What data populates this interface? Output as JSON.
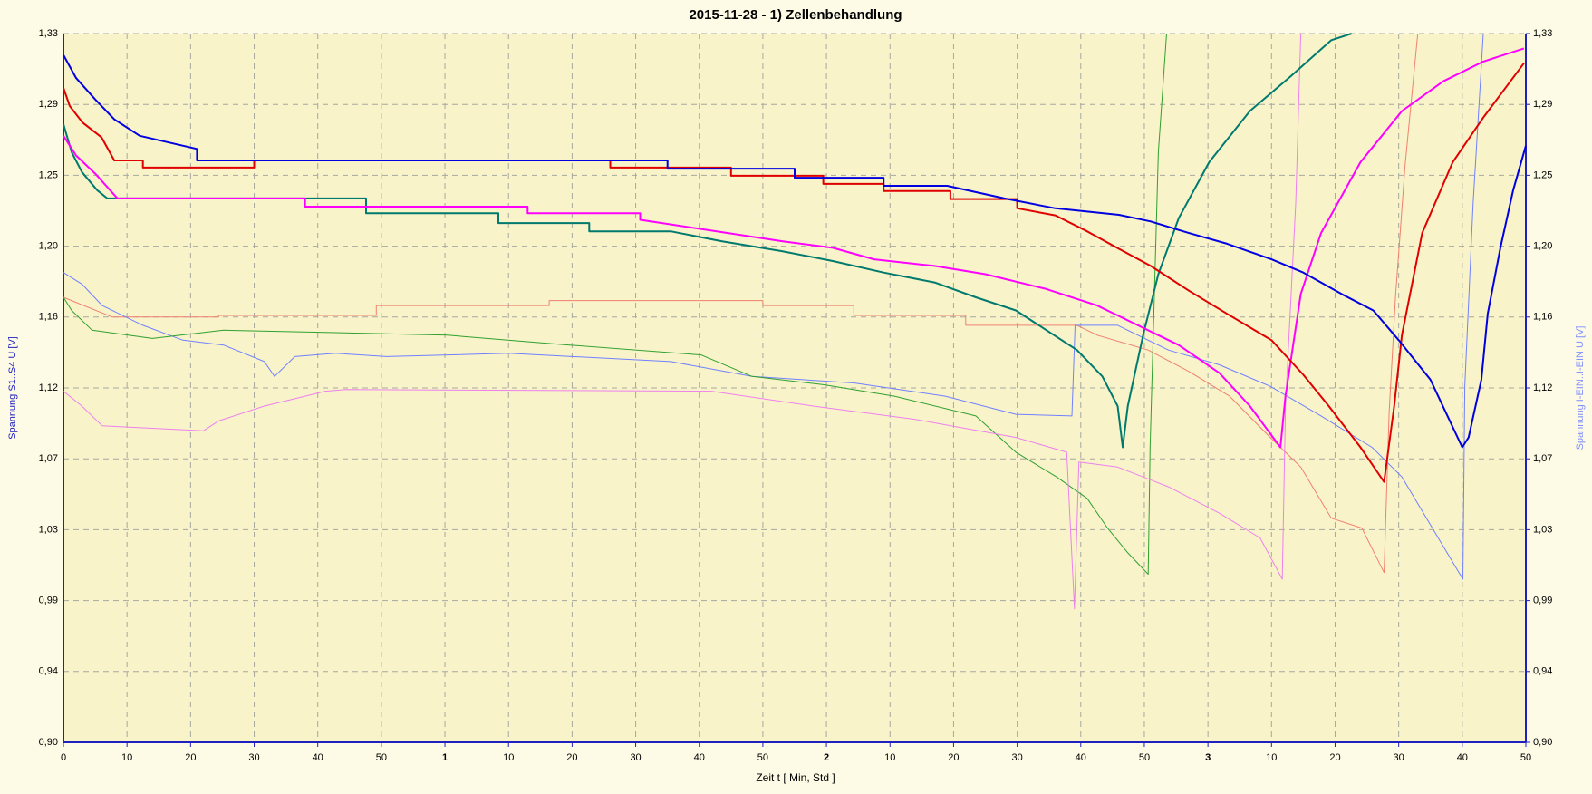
{
  "chart_data": {
    "type": "line",
    "title": "2015-11-28  -  1) Zellenbehandlung",
    "xlabel": "Zeit  t  [ Min, Std ]",
    "ylabel": "Spannung S1..S4  U  [V]",
    "y2label": "Spannung I-EIN..I-EIN  U  [V]",
    "grid": true,
    "xlim": [
      0,
      230
    ],
    "ylim": [
      0.9,
      1.33
    ],
    "y2lim": [
      0.9,
      1.33
    ],
    "xticks": [
      0,
      10,
      20,
      30,
      40,
      50,
      {
        "value": 60,
        "label": "1"
      },
      {
        "value": 70,
        "label": "10"
      },
      {
        "value": 80,
        "label": "20"
      },
      {
        "value": 90,
        "label": "30"
      },
      {
        "value": 100,
        "label": "40"
      },
      {
        "value": 110,
        "label": "50"
      },
      {
        "value": 120,
        "label": "2"
      },
      {
        "value": 130,
        "label": "10"
      },
      {
        "value": 140,
        "label": "20"
      },
      {
        "value": 150,
        "label": "30"
      },
      {
        "value": 160,
        "label": "40"
      },
      {
        "value": 170,
        "label": "50"
      },
      {
        "value": 180,
        "label": "3"
      },
      {
        "value": 190,
        "label": "10"
      },
      {
        "value": 200,
        "label": "20"
      },
      {
        "value": 210,
        "label": "30"
      },
      {
        "value": 220,
        "label": "40"
      },
      {
        "value": 230,
        "label": "50"
      }
    ],
    "yticks": [
      {
        "value": 0.9,
        "label": "0,90"
      },
      {
        "value": 0.943,
        "label": "0,94"
      },
      {
        "value": 0.986,
        "label": "0,99"
      },
      {
        "value": 1.029,
        "label": "1,03"
      },
      {
        "value": 1.072,
        "label": "1,07"
      },
      {
        "value": 1.115,
        "label": "1,12"
      },
      {
        "value": 1.158,
        "label": "1,16"
      },
      {
        "value": 1.201,
        "label": "1,20"
      },
      {
        "value": 1.244,
        "label": "1,25"
      },
      {
        "value": 1.287,
        "label": "1,29"
      },
      {
        "value": 1.33,
        "label": "1,33"
      }
    ],
    "y2ticks": [
      {
        "value": 0.9,
        "label": "0,90"
      },
      {
        "value": 0.943,
        "label": "0,94"
      },
      {
        "value": 0.986,
        "label": "0,99"
      },
      {
        "value": 1.029,
        "label": "1,03"
      },
      {
        "value": 1.072,
        "label": "1,07"
      },
      {
        "value": 1.115,
        "label": "1,12"
      },
      {
        "value": 1.158,
        "label": "1,16"
      },
      {
        "value": 1.201,
        "label": "1,20"
      },
      {
        "value": 1.244,
        "label": "1,25"
      },
      {
        "value": 1.287,
        "label": "1,29"
      },
      {
        "value": 1.33,
        "label": "1,33"
      }
    ],
    "series": [
      {
        "color": "#f08070",
        "width": 1,
        "axis": "y2",
        "x": [
          0,
          7.7,
          24.4,
          24.4,
          49.2,
          49.2,
          76.4,
          76.4,
          110,
          110,
          124.3,
          124.3,
          141.9,
          141.9,
          159.4,
          162.6,
          170.6,
          177,
          183.4,
          189.8,
          194.6,
          199.4,
          204.2,
          207.7,
          208.5,
          209.5,
          211,
          213
        ],
        "values": [
          1.17,
          1.158,
          1.158,
          1.159,
          1.159,
          1.165,
          1.165,
          1.168,
          1.168,
          1.165,
          1.165,
          1.159,
          1.159,
          1.153,
          1.153,
          1.147,
          1.138,
          1.125,
          1.11,
          1.085,
          1.067,
          1.036,
          1.03,
          1.003,
          1.1,
          1.17,
          1.25,
          1.33
        ]
      },
      {
        "color": "#7080ff",
        "width": 1,
        "axis": "y2",
        "x": [
          0,
          2.9,
          6.1,
          12.5,
          18.8,
          25.2,
          31.6,
          33.2,
          36.4,
          42.8,
          50.8,
          70,
          95.5,
          108.3,
          124.3,
          138.7,
          149.8,
          158.6,
          159.1,
          165.8,
          173.8,
          181.8,
          189.8,
          197.8,
          205.8,
          210.5,
          215.3,
          220.1,
          220.4,
          221.7,
          223.3
        ],
        "values": [
          1.185,
          1.178,
          1.165,
          1.153,
          1.144,
          1.141,
          1.131,
          1.122,
          1.134,
          1.136,
          1.134,
          1.136,
          1.131,
          1.122,
          1.118,
          1.11,
          1.099,
          1.098,
          1.153,
          1.153,
          1.138,
          1.129,
          1.116,
          1.098,
          1.079,
          1.061,
          1.03,
          0.999,
          1.116,
          1.227,
          1.33
        ]
      },
      {
        "color": "#30a030",
        "width": 1,
        "axis": "y2",
        "x": [
          0,
          1.3,
          4.5,
          14,
          25.2,
          60.4,
          79.6,
          100.3,
          108.3,
          119.5,
          130.7,
          143.5,
          149.8,
          156.2,
          161,
          164.2,
          167.4,
          170.6,
          170.9,
          172.2,
          173.5
        ],
        "values": [
          1.17,
          1.162,
          1.15,
          1.145,
          1.15,
          1.147,
          1.141,
          1.135,
          1.122,
          1.117,
          1.11,
          1.098,
          1.076,
          1.061,
          1.048,
          1.03,
          1.015,
          1.002,
          1.079,
          1.258,
          1.33
        ]
      },
      {
        "color": "#ee80ee",
        "width": 1,
        "axis": "y2",
        "x": [
          0,
          2.9,
          6.1,
          22,
          24.4,
          31.6,
          38,
          41.2,
          44.4,
          101.9,
          117.9,
          133.9,
          149.8,
          157.8,
          159,
          159.7,
          165.8,
          173.8,
          181.8,
          188.2,
          191.7,
          192.2,
          193.8,
          194.6
        ],
        "values": [
          1.113,
          1.104,
          1.092,
          1.089,
          1.095,
          1.104,
          1.11,
          1.113,
          1.114,
          1.113,
          1.104,
          1.096,
          1.085,
          1.076,
          0.981,
          1.07,
          1.067,
          1.055,
          1.039,
          1.024,
          0.999,
          1.104,
          1.227,
          1.33
        ]
      },
      {
        "color": "#007a6e",
        "width": 2,
        "x": [
          0,
          1.3,
          2.9,
          5.3,
          6.9,
          47.6,
          47.6,
          68.4,
          68.4,
          82.7,
          82.7,
          95.5,
          103.5,
          113,
          121,
          129,
          137,
          143.5,
          149.8,
          154.6,
          159.4,
          163.4,
          165.8,
          166.6,
          167.4,
          169.8,
          172.2,
          175.4,
          180.2,
          186.6,
          193,
          199.4,
          202.6
        ],
        "values": [
          1.275,
          1.258,
          1.246,
          1.235,
          1.23,
          1.23,
          1.221,
          1.221,
          1.215,
          1.215,
          1.21,
          1.21,
          1.204,
          1.198,
          1.192,
          1.185,
          1.179,
          1.17,
          1.162,
          1.15,
          1.138,
          1.122,
          1.104,
          1.079,
          1.104,
          1.147,
          1.184,
          1.218,
          1.252,
          1.283,
          1.304,
          1.326,
          1.33
        ]
      },
      {
        "color": "#ff00ff",
        "width": 2,
        "x": [
          0,
          2,
          5,
          8.5,
          38,
          38,
          73,
          73,
          90.7,
          90.7,
          113,
          121,
          127.5,
          137,
          145,
          154.6,
          162.6,
          169,
          175.4,
          181.8,
          186.6,
          191.4,
          192.2,
          194.6,
          197.8,
          204,
          210.5,
          217,
          223.3,
          229.7
        ],
        "values": [
          1.268,
          1.256,
          1.245,
          1.23,
          1.23,
          1.225,
          1.225,
          1.221,
          1.221,
          1.217,
          1.204,
          1.2,
          1.193,
          1.189,
          1.184,
          1.175,
          1.165,
          1.153,
          1.141,
          1.124,
          1.104,
          1.079,
          1.11,
          1.172,
          1.209,
          1.252,
          1.283,
          1.301,
          1.313,
          1.321
        ]
      },
      {
        "color": "#e00000",
        "width": 2,
        "x": [
          0,
          1,
          3,
          6,
          8,
          12.5,
          12.5,
          30,
          30,
          86,
          86,
          105,
          105,
          119.5,
          119.5,
          129,
          129,
          139.5,
          139.5,
          150,
          150,
          156,
          161,
          166,
          171,
          177,
          183,
          190,
          195,
          199,
          204,
          207.7,
          209.3,
          210.5,
          213.7,
          218.5,
          223.3,
          229.7
        ],
        "values": [
          1.297,
          1.286,
          1.276,
          1.267,
          1.253,
          1.253,
          1.2487,
          1.2487,
          1.253,
          1.253,
          1.2487,
          1.2487,
          1.2437,
          1.2437,
          1.2388,
          1.2388,
          1.2345,
          1.2345,
          1.2296,
          1.2296,
          1.224,
          1.2197,
          1.21,
          1.1994,
          1.189,
          1.174,
          1.16,
          1.144,
          1.123,
          1.104,
          1.079,
          1.058,
          1.104,
          1.147,
          1.209,
          1.252,
          1.279,
          1.312
        ]
      },
      {
        "color": "#0000e0",
        "width": 2,
        "x": [
          0,
          2,
          5,
          8,
          12,
          21,
          21,
          95,
          95,
          115,
          115,
          129,
          129,
          139,
          148,
          156,
          166,
          171,
          177,
          183,
          190,
          195,
          201,
          206,
          210,
          215,
          220,
          221,
          223,
          224,
          226,
          228,
          230
        ],
        "values": [
          1.317,
          1.303,
          1.29,
          1.278,
          1.268,
          1.26,
          1.253,
          1.253,
          1.248,
          1.248,
          1.2425,
          1.2425,
          1.2376,
          1.2376,
          1.23,
          1.224,
          1.22,
          1.216,
          1.209,
          1.2025,
          1.193,
          1.185,
          1.172,
          1.162,
          1.144,
          1.12,
          1.079,
          1.085,
          1.12,
          1.16,
          1.2,
          1.235,
          1.262
        ]
      }
    ]
  }
}
